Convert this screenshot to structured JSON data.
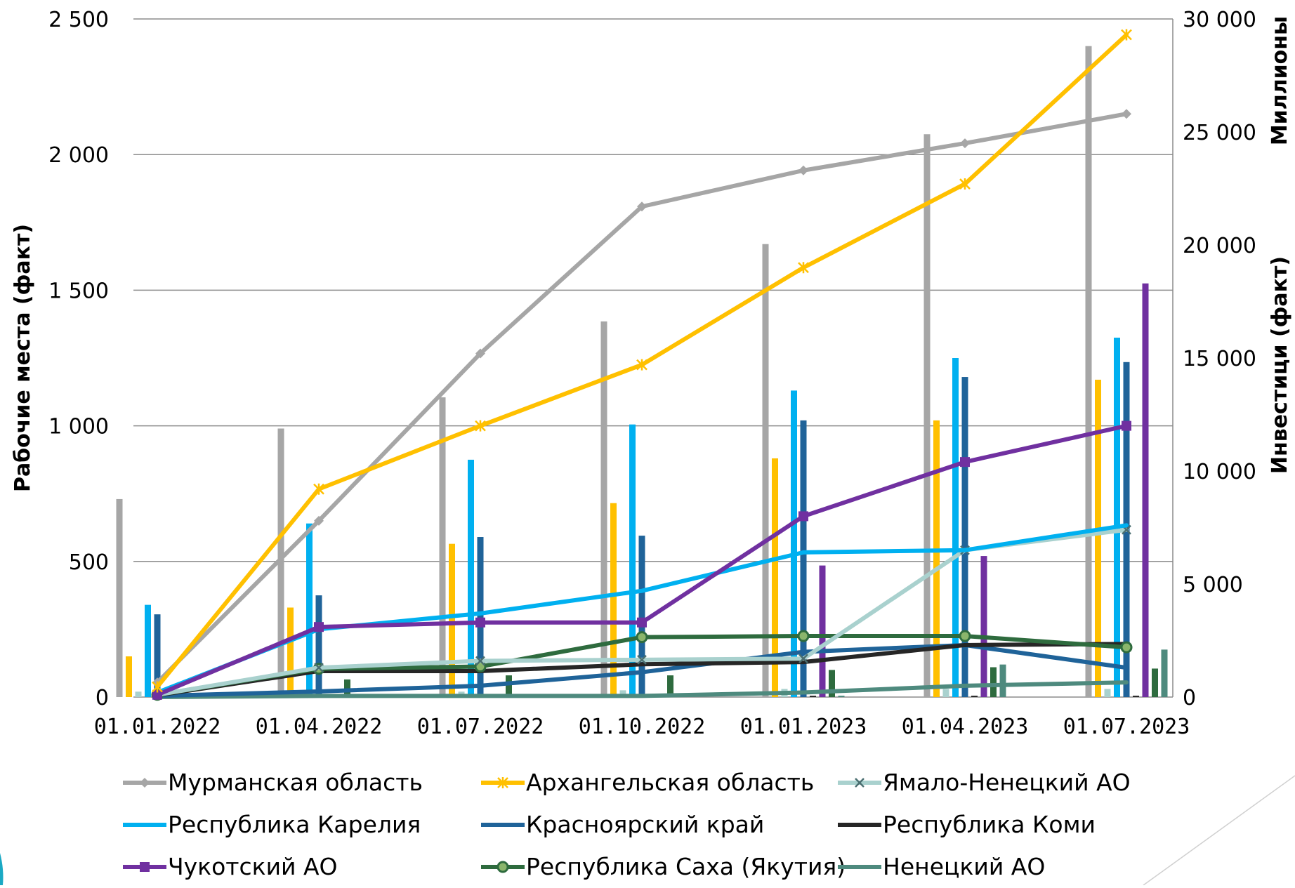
{
  "chart_data": {
    "type": "bar+line",
    "categories": [
      "01.01.2022",
      "01.04.2022",
      "01.07.2022",
      "01.10.2022",
      "01.01.2023",
      "01.04.2023",
      "01.07.2023"
    ],
    "y_left": {
      "label": "Рабочие места (факт)",
      "ylim": [
        0,
        2500
      ],
      "ticks": [
        0,
        500,
        1000,
        1500,
        2000,
        2500
      ],
      "tick_labels": [
        "0",
        "500",
        "1 000",
        "1 500",
        "2 000",
        "2 500"
      ]
    },
    "y_right": {
      "label": "Инвестици (факт)",
      "unit_label": "Миллионы",
      "ylim": [
        0,
        30000
      ],
      "ticks": [
        0,
        5000,
        10000,
        15000,
        20000,
        25000,
        30000
      ],
      "tick_labels": [
        "0",
        "5 000",
        "10 000",
        "15 000",
        "20 000",
        "25 000",
        "30 000"
      ]
    },
    "grid": true,
    "legend_position": "bottom",
    "series": [
      {
        "name": "Мурманская область",
        "color": "#a6a6a6",
        "marker": "diamond",
        "bars": [
          730,
          990,
          1105,
          1385,
          1670,
          2075,
          2400
        ],
        "line": [
          650,
          7800,
          15200,
          21700,
          23300,
          24500,
          25800
        ]
      },
      {
        "name": "Архангельская область",
        "color": "#ffc000",
        "marker": "asterisk",
        "bars": [
          150,
          330,
          565,
          715,
          880,
          1020,
          1170
        ],
        "line": [
          450,
          9200,
          12000,
          14700,
          19000,
          22700,
          29300
        ]
      },
      {
        "name": "Ямало-Ненецкий АО",
        "color": "#a9d1ce",
        "marker": "x",
        "bars": [
          20,
          20,
          20,
          25,
          30,
          30,
          30
        ],
        "line": [
          100,
          1300,
          1600,
          1650,
          1700,
          6500,
          7400
        ]
      },
      {
        "name": "Республика Карелия",
        "color": "#00b0f0",
        "marker": "none",
        "bars": [
          340,
          640,
          875,
          1005,
          1130,
          1250,
          1325
        ],
        "line": [
          200,
          3000,
          3700,
          4700,
          6400,
          6500,
          7600
        ]
      },
      {
        "name": "Красноярский край",
        "color": "#1f6399",
        "marker": "none",
        "bars": [
          305,
          375,
          590,
          595,
          1020,
          1180,
          1235
        ],
        "line": [
          50,
          250,
          500,
          1100,
          2000,
          2300,
          1300
        ]
      },
      {
        "name": "Республика Коми",
        "color": "#262626",
        "marker": "none",
        "bars": [
          5,
          5,
          5,
          5,
          5,
          5,
          5
        ],
        "line": [
          80,
          1150,
          1150,
          1450,
          1550,
          2300,
          2350
        ]
      },
      {
        "name": "Чукотский АО",
        "color": "#7030a0",
        "marker": "square",
        "bars": [
          0,
          0,
          0,
          0,
          485,
          520,
          1525
        ],
        "line": [
          100,
          3100,
          3300,
          3300,
          8000,
          10400,
          12000
        ]
      },
      {
        "name": "Республика Саха (Якутия)",
        "color": "#2e6b3e",
        "marker": "circle",
        "bars": [
          5,
          65,
          80,
          80,
          100,
          110,
          105
        ],
        "line": [
          100,
          1250,
          1350,
          2650,
          2700,
          2700,
          2200
        ]
      },
      {
        "name": "Ненецкий АО",
        "color": "#4e8a7e",
        "marker": "none",
        "bars": [
          5,
          5,
          5,
          5,
          5,
          120,
          175
        ],
        "line": [
          0,
          50,
          50,
          50,
          200,
          500,
          650
        ]
      }
    ]
  }
}
